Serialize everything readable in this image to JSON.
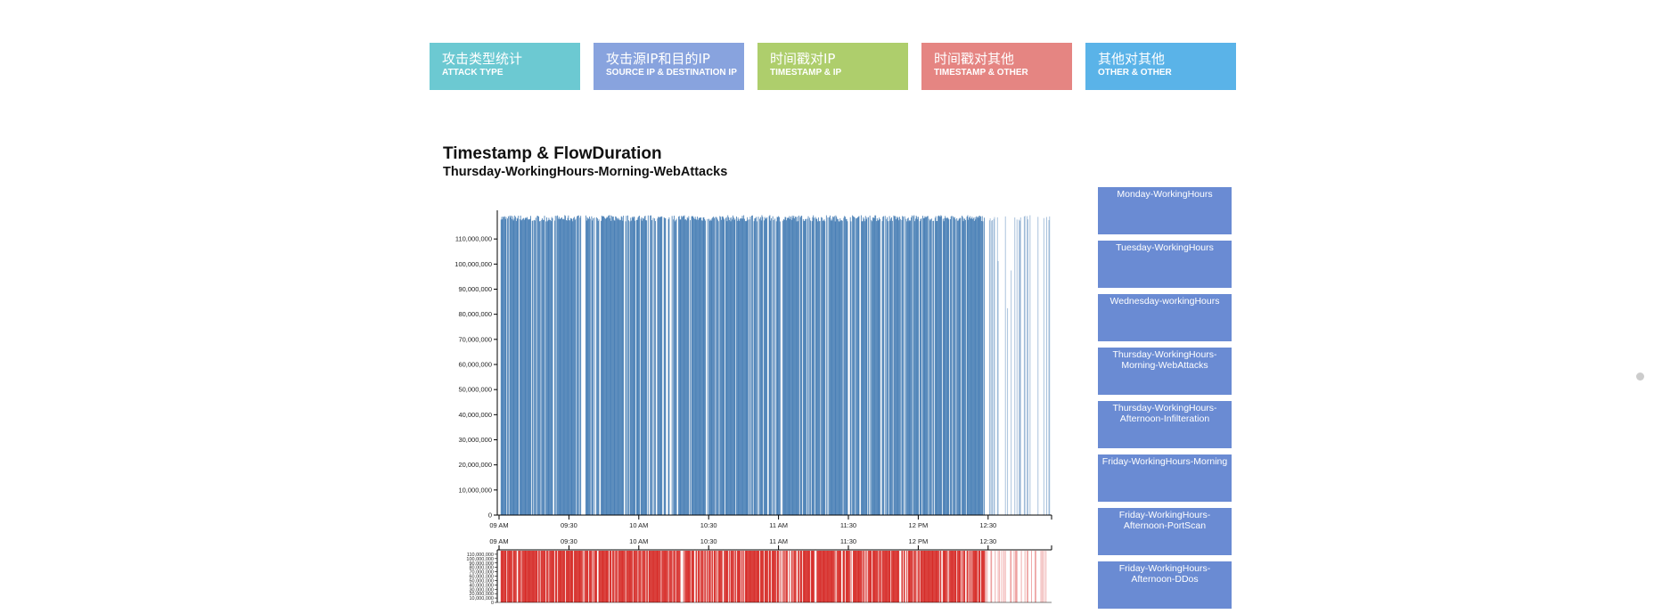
{
  "nav": [
    {
      "zh": "攻击类型统计",
      "en": "ATTACK TYPE",
      "color": "#6cc9d2"
    },
    {
      "zh": "攻击源IP和目的IP",
      "en": "SOURCE IP & DESTINATION IP",
      "color": "#88a3de"
    },
    {
      "zh": "时间戳对IP",
      "en": "TIMESTAMP & IP",
      "color": "#aece6c"
    },
    {
      "zh": "时间戳对其他",
      "en": "TIMESTAMP & OTHER",
      "color": "#e58582"
    },
    {
      "zh": "其他对其他",
      "en": "OTHER & OTHER",
      "color": "#5ab3e8"
    }
  ],
  "page": {
    "title": "Timestamp & FlowDuration",
    "subtitle": "Thursday-WorkingHours-Morning-WebAttacks"
  },
  "days": [
    "Monday-WorkingHours",
    "Tuesday-WorkingHours",
    "Wednesday-workingHours",
    "Thursday-WorkingHours-Morning-WebAttacks",
    "Thursday-WorkingHours-Afternoon-Infilteration",
    "Friday-WorkingHours-Morning",
    "Friday-WorkingHours-Afternoon-PortScan",
    "Friday-WorkingHours-Afternoon-DDos"
  ],
  "chart_data": {
    "type": "bar",
    "xlabel": "",
    "ylabel": "",
    "x_ticks": [
      "09 AM",
      "09:30",
      "10 AM",
      "10:30",
      "11 AM",
      "11:30",
      "12 PM",
      "12:30"
    ],
    "x_range": [
      "09:00",
      "13:00"
    ],
    "y_ticks": [
      "0",
      "10,000,000",
      "20,000,000",
      "30,000,000",
      "40,000,000",
      "50,000,000",
      "60,000,000",
      "70,000,000",
      "80,000,000",
      "90,000,000",
      "100,000,000",
      "110,000,000"
    ],
    "ylim": [
      0,
      120000000
    ],
    "main_color": "#4a80b6",
    "brush_color": "#d62b27",
    "brush_y_ticks": [
      "0",
      "10,000,000",
      "20,000,000",
      "30,000,000",
      "40,000,000",
      "50,000,000",
      "60,000,000",
      "70,000,000",
      "80,000,000",
      "90,000,000",
      "100,000,000",
      "110,000,000"
    ]
  }
}
